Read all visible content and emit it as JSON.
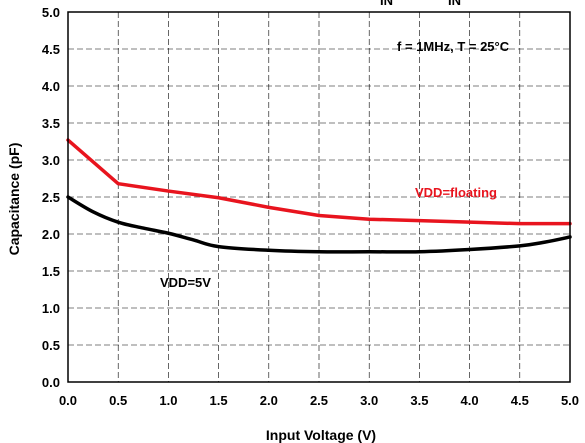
{
  "chart_data": {
    "type": "line",
    "xlabel": "Input Voltage (V)",
    "ylabel": "Capacitance (pF)",
    "xlim": [
      0,
      5
    ],
    "ylim": [
      0,
      5
    ],
    "x_ticks": [
      "0.0",
      "0.5",
      "1.0",
      "1.5",
      "2.0",
      "2.5",
      "3.0",
      "3.5",
      "4.0",
      "4.5",
      "5.0"
    ],
    "y_ticks": [
      "0.0",
      "0.5",
      "1.0",
      "1.5",
      "2.0",
      "2.5",
      "3.0",
      "3.5",
      "4.0",
      "4.5",
      "5.0"
    ],
    "grid": true,
    "title_fragment": "IN",
    "title_fragment_2": "IN",
    "annotations": {
      "conditions": "f = 1MHz, T = 25°C",
      "floating_label": "VDD=floating",
      "vdd5_label": "VDD=5V"
    },
    "series": [
      {
        "name": "VDD=floating",
        "color": "#e8141e",
        "x": [
          0.0,
          0.5,
          1.0,
          1.5,
          2.0,
          2.5,
          3.0,
          3.5,
          4.0,
          4.5,
          5.0
        ],
        "values": [
          3.27,
          2.68,
          2.58,
          2.49,
          2.36,
          2.25,
          2.2,
          2.18,
          2.16,
          2.14,
          2.14
        ]
      },
      {
        "name": "VDD=5V",
        "color": "#000000",
        "x": [
          0.0,
          0.25,
          0.5,
          0.75,
          1.0,
          1.25,
          1.5,
          2.0,
          2.5,
          3.0,
          3.5,
          4.0,
          4.5,
          4.75,
          5.0
        ],
        "values": [
          2.5,
          2.3,
          2.16,
          2.08,
          2.01,
          1.92,
          1.83,
          1.78,
          1.76,
          1.76,
          1.76,
          1.79,
          1.84,
          1.89,
          1.96
        ]
      }
    ]
  }
}
